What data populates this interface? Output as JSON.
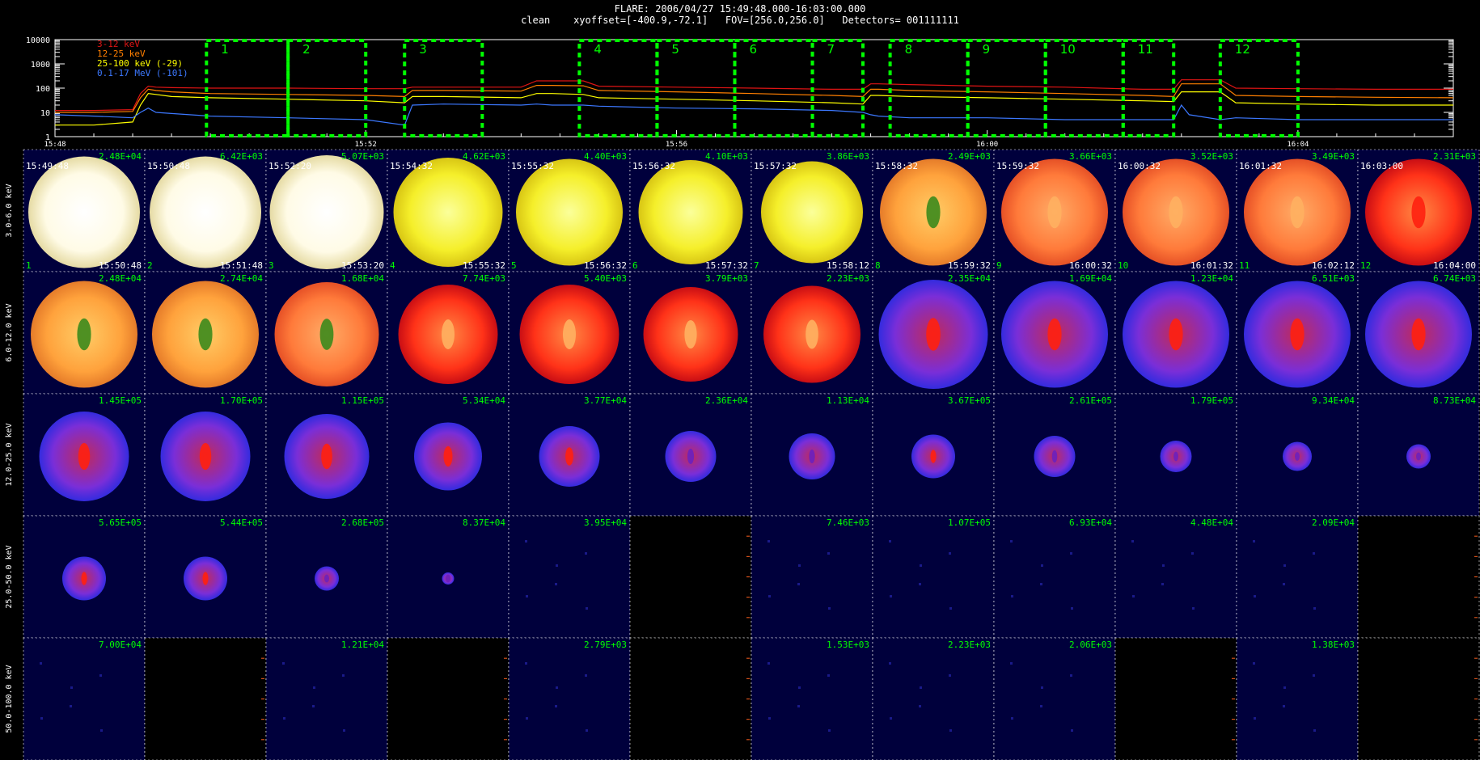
{
  "header": {
    "title": "FLARE: 2006/04/27 15:49:48.000-16:03:00.000",
    "subtitle": "clean    xyoffset=[-400.9,-72.1]   FOV=[256.0,256.0]   Detectors= 001111111"
  },
  "lightcurve": {
    "ytick_labels": [
      "10000",
      "1000",
      "100",
      "10",
      "1"
    ],
    "ytick_values": [
      10000,
      1000,
      100,
      10,
      1
    ],
    "xtick_labels": [
      "15:48",
      "15:52",
      "15:56",
      "16:00",
      "16:04"
    ],
    "xtick_minutes": [
      0,
      4,
      8,
      12,
      16
    ],
    "legend": [
      {
        "label": "3-12 keV",
        "color": "#e01414"
      },
      {
        "label": "12-25 keV",
        "color": "#ff7f00"
      },
      {
        "label": "25-100 keV (-29)",
        "color": "#ffff00"
      },
      {
        "label": "0.1-17 MeV (-101)",
        "color": "#3c78ff"
      }
    ],
    "interval_box_color": "#00ff00",
    "intervals": [
      {
        "label": "1",
        "start": 1.95,
        "end": 3.0
      },
      {
        "label": "2",
        "start": 3.0,
        "end": 4.0
      },
      {
        "label": "3",
        "start": 4.5,
        "end": 5.5
      },
      {
        "label": "4",
        "start": 6.75,
        "end": 7.75
      },
      {
        "label": "5",
        "start": 7.75,
        "end": 8.75
      },
      {
        "label": "6",
        "start": 8.75,
        "end": 9.75
      },
      {
        "label": "7",
        "start": 9.75,
        "end": 10.4
      },
      {
        "label": "8",
        "start": 10.75,
        "end": 11.75
      },
      {
        "label": "9",
        "start": 11.75,
        "end": 12.75
      },
      {
        "label": "10",
        "start": 12.75,
        "end": 13.75
      },
      {
        "label": "11",
        "start": 13.75,
        "end": 14.4
      },
      {
        "label": "12",
        "start": 15.0,
        "end": 16.0
      }
    ]
  },
  "chart_data": {
    "type": "line",
    "title": "",
    "xlabel": "",
    "ylabel": "",
    "x_minutes_after_1548": [
      0,
      0.5,
      1.0,
      1.1,
      1.2,
      1.3,
      1.5,
      2.0,
      3.0,
      4.0,
      4.5,
      4.6,
      5.0,
      6.0,
      6.2,
      6.4,
      6.8,
      7.0,
      8.0,
      9.0,
      10.0,
      10.4,
      10.5,
      10.6,
      11.0,
      12.0,
      13.0,
      14.0,
      14.4,
      14.5,
      14.6,
      15.0,
      15.2,
      16.0,
      17.0,
      18.0
    ],
    "ylim": [
      1,
      10000
    ],
    "log_y": true,
    "series": [
      {
        "name": "3-12 keV",
        "color": "#e01414",
        "values": [
          12,
          12,
          13,
          60,
          120,
          110,
          105,
          100,
          100,
          95,
          95,
          110,
          110,
          110,
          200,
          200,
          200,
          120,
          110,
          100,
          90,
          90,
          150,
          150,
          140,
          120,
          110,
          90,
          90,
          220,
          220,
          220,
          100,
          95,
          90,
          90
        ]
      },
      {
        "name": "12-25 keV",
        "color": "#ff7f00",
        "values": [
          10,
          10,
          11,
          40,
          90,
          80,
          70,
          60,
          55,
          50,
          45,
          80,
          80,
          75,
          130,
          130,
          125,
          80,
          70,
          60,
          50,
          45,
          90,
          90,
          80,
          70,
          60,
          50,
          45,
          150,
          150,
          150,
          50,
          45,
          42,
          40
        ]
      },
      {
        "name": "25-100 keV (-29)",
        "color": "#ffff00",
        "values": [
          3,
          3,
          4,
          20,
          60,
          55,
          45,
          40,
          35,
          30,
          25,
          45,
          45,
          40,
          60,
          60,
          55,
          40,
          35,
          30,
          25,
          22,
          50,
          50,
          45,
          40,
          35,
          30,
          28,
          70,
          70,
          70,
          25,
          22,
          20,
          20
        ]
      },
      {
        "name": "0.1-17 MeV (-101)",
        "color": "#3c78ff",
        "values": [
          8,
          7,
          6,
          10,
          15,
          10,
          9,
          7,
          6,
          5,
          3,
          20,
          22,
          20,
          22,
          20,
          20,
          18,
          15,
          14,
          12,
          10,
          8,
          7,
          6,
          6,
          5,
          5,
          5,
          20,
          8,
          5,
          6,
          5,
          5,
          5
        ]
      }
    ]
  },
  "image_grid": {
    "row_labels": [
      "3.0-6.0 keV",
      "6.0-12.0 keV",
      "12.0-25.0 keV",
      "25.0-50.0 keV",
      "50.0-100.0 keV"
    ],
    "col_top_left": [
      "15:49:48",
      "15:50:48",
      "15:52:20",
      "15:54:32",
      "15:55:32",
      "15:56:32",
      "15:57:32",
      "15:58:32",
      "15:59:32",
      "16:00:32",
      "16:01:32",
      "16:03:00"
    ],
    "col_bottom_right": [
      "15:50:48",
      "15:51:48",
      "15:53:20",
      "15:55:32",
      "15:56:32",
      "15:57:32",
      "15:58:12",
      "15:59:32",
      "16:00:32",
      "16:01:32",
      "16:02:12",
      "16:04:00"
    ],
    "col_numbers": [
      "1",
      "2",
      "3",
      "4",
      "5",
      "6",
      "7",
      "8",
      "9",
      "10",
      "11",
      "12"
    ],
    "rows": [
      {
        "cells": [
          {
            "max": "2.48E+04",
            "palette": "white",
            "size": 0.92,
            "kern": "none"
          },
          {
            "max": "6.42E+03",
            "palette": "white",
            "size": 0.92,
            "kern": "none"
          },
          {
            "max": "5.07E+03",
            "palette": "white",
            "size": 0.94,
            "kern": "none"
          },
          {
            "max": "4.62E+03",
            "palette": "yellow",
            "size": 0.9,
            "kern": "none"
          },
          {
            "max": "4.40E+03",
            "palette": "yellow",
            "size": 0.88,
            "kern": "none"
          },
          {
            "max": "4.10E+03",
            "palette": "yellow",
            "size": 0.86,
            "kern": "none"
          },
          {
            "max": "3.86E+03",
            "palette": "yellow",
            "size": 0.84,
            "kern": "none"
          },
          {
            "max": "2.49E+03",
            "palette": "orange",
            "size": 0.88,
            "kern": "green"
          },
          {
            "max": "3.66E+03",
            "palette": "orangered",
            "size": 0.88,
            "kern": "orange"
          },
          {
            "max": "3.52E+03",
            "palette": "orangered",
            "size": 0.88,
            "kern": "orange"
          },
          {
            "max": "3.49E+03",
            "palette": "orangered",
            "size": 0.88,
            "kern": "orange"
          },
          {
            "max": "2.31E+03",
            "palette": "red",
            "size": 0.88,
            "kern": "red"
          }
        ]
      },
      {
        "cells": [
          {
            "max": "2.48E+04",
            "palette": "orange",
            "size": 0.88,
            "kern": "green"
          },
          {
            "max": "2.74E+04",
            "palette": "orange",
            "size": 0.88,
            "kern": "green"
          },
          {
            "max": "1.68E+04",
            "palette": "orangered",
            "size": 0.86,
            "kern": "green"
          },
          {
            "max": "7.74E+03",
            "palette": "red",
            "size": 0.82,
            "kern": "orange"
          },
          {
            "max": "5.40E+03",
            "palette": "red",
            "size": 0.82,
            "kern": "orange"
          },
          {
            "max": "3.79E+03",
            "palette": "red",
            "size": 0.78,
            "kern": "orange"
          },
          {
            "max": "2.23E+03",
            "palette": "red",
            "size": 0.8,
            "kern": "orange"
          },
          {
            "max": "2.35E+04",
            "palette": "blue",
            "size": 0.9,
            "kern": "red"
          },
          {
            "max": "1.69E+04",
            "palette": "blue",
            "size": 0.88,
            "kern": "red"
          },
          {
            "max": "1.23E+04",
            "palette": "blue",
            "size": 0.88,
            "kern": "red"
          },
          {
            "max": "6.51E+03",
            "palette": "blue",
            "size": 0.88,
            "kern": "red"
          },
          {
            "max": "6.74E+03",
            "palette": "blue",
            "size": 0.88,
            "kern": "red"
          }
        ]
      },
      {
        "cells": [
          {
            "max": "1.45E+05",
            "palette": "blue",
            "size": 0.74,
            "kern": "red"
          },
          {
            "max": "1.70E+05",
            "palette": "blue",
            "size": 0.74,
            "kern": "red"
          },
          {
            "max": "1.15E+05",
            "palette": "blue",
            "size": 0.7,
            "kern": "red"
          },
          {
            "max": "5.34E+04",
            "palette": "blue",
            "size": 0.56,
            "kern": "red"
          },
          {
            "max": "3.77E+04",
            "palette": "blue",
            "size": 0.5,
            "kern": "red"
          },
          {
            "max": "2.36E+04",
            "palette": "blue",
            "size": 0.42,
            "kern": "dim"
          },
          {
            "max": "1.13E+04",
            "palette": "blue",
            "size": 0.38,
            "kern": "dim"
          },
          {
            "max": "3.67E+05",
            "palette": "blue",
            "size": 0.36,
            "kern": "red"
          },
          {
            "max": "2.61E+05",
            "palette": "blue",
            "size": 0.34,
            "kern": "dim"
          },
          {
            "max": "1.79E+05",
            "palette": "blue",
            "size": 0.26,
            "kern": "dim"
          },
          {
            "max": "9.34E+04",
            "palette": "blue",
            "size": 0.24,
            "kern": "dim"
          },
          {
            "max": "8.73E+04",
            "palette": "blue",
            "size": 0.2,
            "kern": "dim"
          }
        ]
      },
      {
        "cells": [
          {
            "max": "5.65E+05",
            "palette": "blue",
            "size": 0.36,
            "kern": "red"
          },
          {
            "max": "5.44E+05",
            "palette": "blue",
            "size": 0.36,
            "kern": "red"
          },
          {
            "max": "2.68E+05",
            "palette": "blue",
            "size": 0.2,
            "kern": "dim"
          },
          {
            "max": "8.37E+04",
            "palette": "blue",
            "size": 0.1,
            "kern": "dim"
          },
          {
            "max": "3.95E+04",
            "palette": "blue",
            "size": 0.0,
            "kern": "none"
          },
          {
            "max": "",
            "palette": "empty",
            "size": 0,
            "kern": "none"
          },
          {
            "max": "7.46E+03",
            "palette": "blue",
            "size": 0.0,
            "kern": "none"
          },
          {
            "max": "1.07E+05",
            "palette": "blue",
            "size": 0.0,
            "kern": "none"
          },
          {
            "max": "6.93E+04",
            "palette": "blue",
            "size": 0.0,
            "kern": "none"
          },
          {
            "max": "4.48E+04",
            "palette": "blue",
            "size": 0.0,
            "kern": "none"
          },
          {
            "max": "2.09E+04",
            "palette": "blue",
            "size": 0.0,
            "kern": "none"
          },
          {
            "max": "",
            "palette": "empty",
            "size": 0,
            "kern": "none"
          }
        ]
      },
      {
        "cells": [
          {
            "max": "7.00E+04",
            "palette": "blue",
            "size": 0.0,
            "kern": "none"
          },
          {
            "max": "",
            "palette": "empty",
            "size": 0,
            "kern": "none"
          },
          {
            "max": "1.21E+04",
            "palette": "blue",
            "size": 0.0,
            "kern": "none"
          },
          {
            "max": "",
            "palette": "empty",
            "size": 0,
            "kern": "none"
          },
          {
            "max": "2.79E+03",
            "palette": "blue",
            "size": 0.0,
            "kern": "none"
          },
          {
            "max": "",
            "palette": "empty",
            "size": 0,
            "kern": "none"
          },
          {
            "max": "1.53E+03",
            "palette": "blue",
            "size": 0.0,
            "kern": "none"
          },
          {
            "max": "2.23E+03",
            "palette": "blue",
            "size": 0.0,
            "kern": "none"
          },
          {
            "max": "2.06E+03",
            "palette": "blue",
            "size": 0.0,
            "kern": "none"
          },
          {
            "max": "",
            "palette": "empty",
            "size": 0,
            "kern": "none"
          },
          {
            "max": "1.38E+03",
            "palette": "blue",
            "size": 0.0,
            "kern": "none"
          },
          {
            "max": "",
            "palette": "empty",
            "size": 0,
            "kern": "none"
          }
        ]
      }
    ]
  }
}
